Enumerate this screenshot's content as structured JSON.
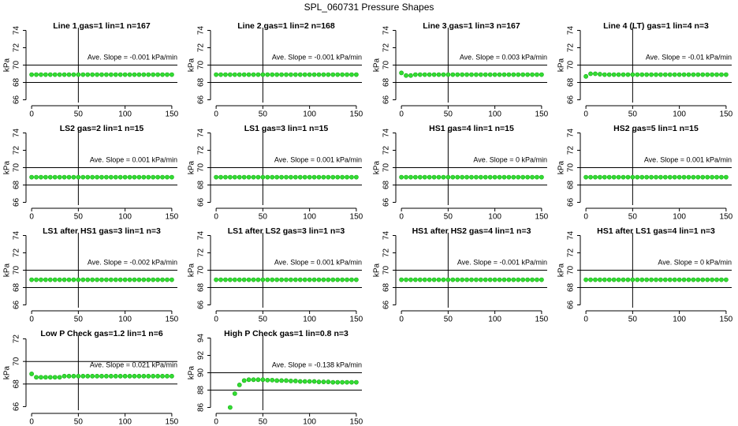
{
  "title": "SPL_060731  Pressure Shapes",
  "chart_data": [
    {
      "type": "scatter",
      "title": "Line 1 gas=1 lin=1 n=167",
      "annotation": "Ave. Slope = -0.001  kPa/min",
      "ylabel": "kPa",
      "xlim": [
        -6,
        156
      ],
      "ylim": [
        65.68,
        74.32
      ],
      "xticks": [
        0,
        50,
        100,
        150
      ],
      "yticks": [
        66,
        68,
        70,
        72,
        74
      ],
      "hlines": [
        70,
        68
      ],
      "vlines": [
        50
      ],
      "color": "#33dd33",
      "x": [
        0,
        5,
        10,
        15,
        20,
        25,
        30,
        35,
        40,
        45,
        50,
        55,
        60,
        65,
        70,
        75,
        80,
        85,
        90,
        95,
        100,
        105,
        110,
        115,
        120,
        125,
        130,
        135,
        140,
        145,
        150
      ],
      "values": [
        68.9,
        68.9,
        68.9,
        68.9,
        68.9,
        68.9,
        68.9,
        68.9,
        68.9,
        68.9,
        68.9,
        68.9,
        68.9,
        68.9,
        68.9,
        68.9,
        68.9,
        68.9,
        68.9,
        68.9,
        68.9,
        68.9,
        68.9,
        68.9,
        68.9,
        68.9,
        68.9,
        68.9,
        68.9,
        68.9,
        68.9
      ]
    },
    {
      "type": "scatter",
      "title": "Line 2 gas=1 lin=2 n=168",
      "annotation": "Ave. Slope = -0.001  kPa/min",
      "ylabel": "kPa",
      "xlim": [
        -6,
        156
      ],
      "ylim": [
        65.68,
        74.32
      ],
      "xticks": [
        0,
        50,
        100,
        150
      ],
      "yticks": [
        66,
        68,
        70,
        72,
        74
      ],
      "hlines": [
        70,
        68
      ],
      "vlines": [
        50
      ],
      "color": "#33dd33",
      "x": [
        0,
        5,
        10,
        15,
        20,
        25,
        30,
        35,
        40,
        45,
        50,
        55,
        60,
        65,
        70,
        75,
        80,
        85,
        90,
        95,
        100,
        105,
        110,
        115,
        120,
        125,
        130,
        135,
        140,
        145,
        150
      ],
      "values": [
        68.9,
        68.9,
        68.9,
        68.9,
        68.9,
        68.9,
        68.9,
        68.9,
        68.9,
        68.9,
        68.9,
        68.9,
        68.9,
        68.9,
        68.9,
        68.9,
        68.9,
        68.9,
        68.9,
        68.9,
        68.9,
        68.9,
        68.9,
        68.9,
        68.9,
        68.9,
        68.9,
        68.9,
        68.9,
        68.9,
        68.9
      ]
    },
    {
      "type": "scatter",
      "title": "Line 3 gas=1 lin=3 n=167",
      "annotation": "Ave. Slope = 0.003  kPa/min",
      "ylabel": "kPa",
      "xlim": [
        -6,
        156
      ],
      "ylim": [
        65.68,
        74.32
      ],
      "xticks": [
        0,
        50,
        100,
        150
      ],
      "yticks": [
        66,
        68,
        70,
        72,
        74
      ],
      "hlines": [
        70,
        68
      ],
      "vlines": [
        50
      ],
      "color": "#33dd33",
      "x": [
        0,
        5,
        10,
        15,
        20,
        25,
        30,
        35,
        40,
        45,
        50,
        55,
        60,
        65,
        70,
        75,
        80,
        85,
        90,
        95,
        100,
        105,
        110,
        115,
        120,
        125,
        130,
        135,
        140,
        145,
        150
      ],
      "values": [
        69.1,
        68.8,
        68.8,
        68.9,
        68.9,
        68.9,
        68.9,
        68.9,
        68.9,
        68.9,
        68.9,
        68.9,
        68.9,
        68.9,
        68.9,
        68.9,
        68.9,
        68.9,
        68.9,
        68.9,
        68.9,
        68.9,
        68.9,
        68.9,
        68.9,
        68.9,
        68.9,
        68.9,
        68.9,
        68.9,
        68.9
      ]
    },
    {
      "type": "scatter",
      "title": "Line 4 (LT) gas=1 lin=4 n=3",
      "annotation": "Ave. Slope = -0.01  kPa/min",
      "ylabel": "kPa",
      "xlim": [
        -6,
        156
      ],
      "ylim": [
        65.68,
        74.32
      ],
      "xticks": [
        0,
        50,
        100,
        150
      ],
      "yticks": [
        66,
        68,
        70,
        72,
        74
      ],
      "hlines": [
        70,
        68
      ],
      "vlines": [
        50
      ],
      "color": "#33dd33",
      "x": [
        0,
        5,
        10,
        15,
        20,
        25,
        30,
        35,
        40,
        45,
        50,
        55,
        60,
        65,
        70,
        75,
        80,
        85,
        90,
        95,
        100,
        105,
        110,
        115,
        120,
        125,
        130,
        135,
        140,
        145,
        150
      ],
      "values": [
        68.7,
        69.0,
        69.0,
        68.95,
        68.9,
        68.9,
        68.9,
        68.9,
        68.9,
        68.9,
        68.9,
        68.9,
        68.9,
        68.9,
        68.9,
        68.9,
        68.9,
        68.9,
        68.9,
        68.9,
        68.9,
        68.9,
        68.9,
        68.9,
        68.9,
        68.9,
        68.9,
        68.9,
        68.9,
        68.9,
        68.9
      ]
    },
    {
      "type": "scatter",
      "title": "LS2 gas=2 lin=1 n=15",
      "annotation": "Ave. Slope = 0.001  kPa/min",
      "ylabel": "kPa",
      "xlim": [
        -6,
        156
      ],
      "ylim": [
        65.68,
        74.32
      ],
      "xticks": [
        0,
        50,
        100,
        150
      ],
      "yticks": [
        66,
        68,
        70,
        72,
        74
      ],
      "hlines": [
        70,
        68
      ],
      "vlines": [
        50
      ],
      "color": "#33dd33",
      "x": [
        0,
        5,
        10,
        15,
        20,
        25,
        30,
        35,
        40,
        45,
        50,
        55,
        60,
        65,
        70,
        75,
        80,
        85,
        90,
        95,
        100,
        105,
        110,
        115,
        120,
        125,
        130,
        135,
        140,
        145,
        150
      ],
      "values": [
        68.9,
        68.9,
        68.9,
        68.9,
        68.9,
        68.9,
        68.9,
        68.9,
        68.9,
        68.9,
        68.9,
        68.9,
        68.9,
        68.9,
        68.9,
        68.9,
        68.9,
        68.9,
        68.9,
        68.9,
        68.9,
        68.9,
        68.9,
        68.9,
        68.9,
        68.9,
        68.9,
        68.9,
        68.9,
        68.9,
        68.9
      ]
    },
    {
      "type": "scatter",
      "title": "LS1 gas=3 lin=1 n=15",
      "annotation": "Ave. Slope = 0.001  kPa/min",
      "ylabel": "kPa",
      "xlim": [
        -6,
        156
      ],
      "ylim": [
        65.68,
        74.32
      ],
      "xticks": [
        0,
        50,
        100,
        150
      ],
      "yticks": [
        66,
        68,
        70,
        72,
        74
      ],
      "hlines": [
        70,
        68
      ],
      "vlines": [
        50
      ],
      "color": "#33dd33",
      "x": [
        0,
        5,
        10,
        15,
        20,
        25,
        30,
        35,
        40,
        45,
        50,
        55,
        60,
        65,
        70,
        75,
        80,
        85,
        90,
        95,
        100,
        105,
        110,
        115,
        120,
        125,
        130,
        135,
        140,
        145,
        150
      ],
      "values": [
        68.9,
        68.9,
        68.9,
        68.9,
        68.9,
        68.9,
        68.9,
        68.9,
        68.9,
        68.9,
        68.9,
        68.9,
        68.9,
        68.9,
        68.9,
        68.9,
        68.9,
        68.9,
        68.9,
        68.9,
        68.9,
        68.9,
        68.9,
        68.9,
        68.9,
        68.9,
        68.9,
        68.9,
        68.9,
        68.9,
        68.9
      ]
    },
    {
      "type": "scatter",
      "title": "HS1 gas=4 lin=1 n=15",
      "annotation": "Ave. Slope = 0  kPa/min",
      "ylabel": "kPa",
      "xlim": [
        -6,
        156
      ],
      "ylim": [
        65.68,
        74.32
      ],
      "xticks": [
        0,
        50,
        100,
        150
      ],
      "yticks": [
        66,
        68,
        70,
        72,
        74
      ],
      "hlines": [
        70,
        68
      ],
      "vlines": [
        50
      ],
      "color": "#33dd33",
      "x": [
        0,
        5,
        10,
        15,
        20,
        25,
        30,
        35,
        40,
        45,
        50,
        55,
        60,
        65,
        70,
        75,
        80,
        85,
        90,
        95,
        100,
        105,
        110,
        115,
        120,
        125,
        130,
        135,
        140,
        145,
        150
      ],
      "values": [
        68.9,
        68.9,
        68.9,
        68.9,
        68.9,
        68.9,
        68.9,
        68.9,
        68.9,
        68.9,
        68.9,
        68.9,
        68.9,
        68.9,
        68.9,
        68.9,
        68.9,
        68.9,
        68.9,
        68.9,
        68.9,
        68.9,
        68.9,
        68.9,
        68.9,
        68.9,
        68.9,
        68.9,
        68.9,
        68.9,
        68.9
      ]
    },
    {
      "type": "scatter",
      "title": "HS2 gas=5 lin=1 n=15",
      "annotation": "Ave. Slope = 0.001  kPa/min",
      "ylabel": "kPa",
      "xlim": [
        -6,
        156
      ],
      "ylim": [
        65.68,
        74.32
      ],
      "xticks": [
        0,
        50,
        100,
        150
      ],
      "yticks": [
        66,
        68,
        70,
        72,
        74
      ],
      "hlines": [
        70,
        68
      ],
      "vlines": [
        50
      ],
      "color": "#33dd33",
      "x": [
        0,
        5,
        10,
        15,
        20,
        25,
        30,
        35,
        40,
        45,
        50,
        55,
        60,
        65,
        70,
        75,
        80,
        85,
        90,
        95,
        100,
        105,
        110,
        115,
        120,
        125,
        130,
        135,
        140,
        145,
        150
      ],
      "values": [
        68.9,
        68.9,
        68.9,
        68.9,
        68.9,
        68.9,
        68.9,
        68.9,
        68.9,
        68.9,
        68.9,
        68.9,
        68.9,
        68.9,
        68.9,
        68.9,
        68.9,
        68.9,
        68.9,
        68.9,
        68.9,
        68.9,
        68.9,
        68.9,
        68.9,
        68.9,
        68.9,
        68.9,
        68.9,
        68.9,
        68.9
      ]
    },
    {
      "type": "scatter",
      "title": "LS1 after HS1 gas=3 lin=1 n=3",
      "annotation": "Ave. Slope = -0.002  kPa/min",
      "ylabel": "kPa",
      "xlim": [
        -6,
        156
      ],
      "ylim": [
        65.68,
        74.32
      ],
      "xticks": [
        0,
        50,
        100,
        150
      ],
      "yticks": [
        66,
        68,
        70,
        72,
        74
      ],
      "hlines": [
        70,
        68
      ],
      "vlines": [
        50
      ],
      "color": "#33dd33",
      "x": [
        0,
        5,
        10,
        15,
        20,
        25,
        30,
        35,
        40,
        45,
        50,
        55,
        60,
        65,
        70,
        75,
        80,
        85,
        90,
        95,
        100,
        105,
        110,
        115,
        120,
        125,
        130,
        135,
        140,
        145,
        150
      ],
      "values": [
        68.9,
        68.9,
        68.9,
        68.9,
        68.9,
        68.9,
        68.9,
        68.9,
        68.9,
        68.9,
        68.9,
        68.9,
        68.9,
        68.9,
        68.9,
        68.9,
        68.9,
        68.9,
        68.9,
        68.9,
        68.9,
        68.9,
        68.9,
        68.9,
        68.9,
        68.9,
        68.9,
        68.9,
        68.9,
        68.9,
        68.9
      ]
    },
    {
      "type": "scatter",
      "title": "LS1 after LS2 gas=3 lin=1 n=3",
      "annotation": "Ave. Slope = 0.001  kPa/min",
      "ylabel": "kPa",
      "xlim": [
        -6,
        156
      ],
      "ylim": [
        65.68,
        74.32
      ],
      "xticks": [
        0,
        50,
        100,
        150
      ],
      "yticks": [
        66,
        68,
        70,
        72,
        74
      ],
      "hlines": [
        70,
        68
      ],
      "vlines": [
        50
      ],
      "color": "#33dd33",
      "x": [
        0,
        5,
        10,
        15,
        20,
        25,
        30,
        35,
        40,
        45,
        50,
        55,
        60,
        65,
        70,
        75,
        80,
        85,
        90,
        95,
        100,
        105,
        110,
        115,
        120,
        125,
        130,
        135,
        140,
        145,
        150
      ],
      "values": [
        68.9,
        68.9,
        68.9,
        68.9,
        68.9,
        68.9,
        68.9,
        68.9,
        68.9,
        68.9,
        68.9,
        68.9,
        68.9,
        68.9,
        68.9,
        68.9,
        68.9,
        68.9,
        68.9,
        68.9,
        68.9,
        68.9,
        68.9,
        68.9,
        68.9,
        68.9,
        68.9,
        68.9,
        68.9,
        68.9,
        68.9
      ]
    },
    {
      "type": "scatter",
      "title": "HS1 after HS2 gas=4 lin=1 n=3",
      "annotation": "Ave. Slope = -0.001  kPa/min",
      "ylabel": "kPa",
      "xlim": [
        -6,
        156
      ],
      "ylim": [
        65.68,
        74.32
      ],
      "xticks": [
        0,
        50,
        100,
        150
      ],
      "yticks": [
        66,
        68,
        70,
        72,
        74
      ],
      "hlines": [
        70,
        68
      ],
      "vlines": [
        50
      ],
      "color": "#33dd33",
      "x": [
        0,
        5,
        10,
        15,
        20,
        25,
        30,
        35,
        40,
        45,
        50,
        55,
        60,
        65,
        70,
        75,
        80,
        85,
        90,
        95,
        100,
        105,
        110,
        115,
        120,
        125,
        130,
        135,
        140,
        145,
        150
      ],
      "values": [
        68.9,
        68.9,
        68.9,
        68.9,
        68.9,
        68.9,
        68.9,
        68.9,
        68.9,
        68.9,
        68.9,
        68.9,
        68.9,
        68.9,
        68.9,
        68.9,
        68.9,
        68.9,
        68.9,
        68.9,
        68.9,
        68.9,
        68.9,
        68.9,
        68.9,
        68.9,
        68.9,
        68.9,
        68.9,
        68.9,
        68.9
      ]
    },
    {
      "type": "scatter",
      "title": "HS1 after LS1 gas=4 lin=1 n=3",
      "annotation": "Ave. Slope = 0  kPa/min",
      "ylabel": "kPa",
      "xlim": [
        -6,
        156
      ],
      "ylim": [
        65.68,
        74.32
      ],
      "xticks": [
        0,
        50,
        100,
        150
      ],
      "yticks": [
        66,
        68,
        70,
        72,
        74
      ],
      "hlines": [
        70,
        68
      ],
      "vlines": [
        50
      ],
      "color": "#33dd33",
      "x": [
        0,
        5,
        10,
        15,
        20,
        25,
        30,
        35,
        40,
        45,
        50,
        55,
        60,
        65,
        70,
        75,
        80,
        85,
        90,
        95,
        100,
        105,
        110,
        115,
        120,
        125,
        130,
        135,
        140,
        145,
        150
      ],
      "values": [
        68.9,
        68.9,
        68.9,
        68.9,
        68.9,
        68.9,
        68.9,
        68.9,
        68.9,
        68.9,
        68.9,
        68.9,
        68.9,
        68.9,
        68.9,
        68.9,
        68.9,
        68.9,
        68.9,
        68.9,
        68.9,
        68.9,
        68.9,
        68.9,
        68.9,
        68.9,
        68.9,
        68.9,
        68.9,
        68.9,
        68.9
      ]
    },
    {
      "type": "scatter",
      "title": "Low P Check gas=1.2 lin=1 n=6",
      "annotation": "Ave. Slope = 0.021  kPa/min",
      "ylabel": "kPa",
      "xlim": [
        -6,
        156
      ],
      "ylim": [
        65.68,
        72.32
      ],
      "xticks": [
        0,
        50,
        100,
        150
      ],
      "yticks": [
        66,
        68,
        70,
        72
      ],
      "hlines": [
        70,
        68
      ],
      "vlines": [
        50
      ],
      "color": "#33dd33",
      "x": [
        0,
        5,
        10,
        15,
        20,
        25,
        30,
        35,
        40,
        45,
        50,
        55,
        60,
        65,
        70,
        75,
        80,
        85,
        90,
        95,
        100,
        105,
        110,
        115,
        120,
        125,
        130,
        135,
        140,
        145,
        150
      ],
      "values": [
        68.9,
        68.6,
        68.6,
        68.6,
        68.6,
        68.6,
        68.6,
        68.7,
        68.7,
        68.7,
        68.7,
        68.7,
        68.7,
        68.7,
        68.7,
        68.7,
        68.7,
        68.7,
        68.7,
        68.7,
        68.7,
        68.7,
        68.7,
        68.7,
        68.7,
        68.7,
        68.7,
        68.7,
        68.7,
        68.7,
        68.7
      ]
    },
    {
      "type": "scatter",
      "title": "High P Check gas=1 lin=0.8 n=3",
      "annotation": "Ave. Slope = -0.138  kPa/min",
      "ylabel": "kPa",
      "xlim": [
        -6,
        156
      ],
      "ylim": [
        85.68,
        94.32
      ],
      "xticks": [
        0,
        50,
        100,
        150
      ],
      "yticks": [
        86,
        88,
        90,
        92,
        94
      ],
      "hlines": [
        90,
        88
      ],
      "vlines": [
        50
      ],
      "color": "#33dd33",
      "x": [
        15,
        20,
        25,
        30,
        35,
        40,
        45,
        50,
        55,
        60,
        65,
        70,
        75,
        80,
        85,
        90,
        95,
        100,
        105,
        110,
        115,
        120,
        125,
        130,
        135,
        140,
        145,
        150
      ],
      "values": [
        86.0,
        87.6,
        88.6,
        89.1,
        89.2,
        89.2,
        89.2,
        89.2,
        89.15,
        89.15,
        89.1,
        89.1,
        89.1,
        89.05,
        89.05,
        89.0,
        89.0,
        89.0,
        89.0,
        88.95,
        88.95,
        88.95,
        88.9,
        88.9,
        88.9,
        88.9,
        88.9,
        88.9
      ]
    }
  ]
}
